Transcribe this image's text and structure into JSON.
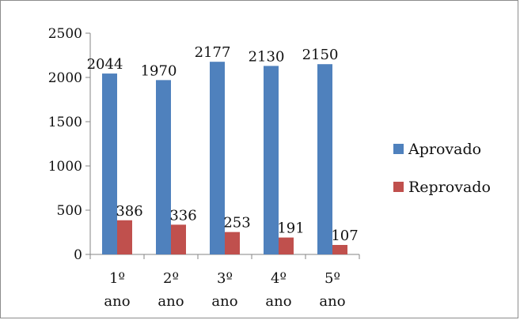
{
  "chart_data": {
    "type": "bar",
    "categories": [
      {
        "line1": "1º",
        "line2": "ano"
      },
      {
        "line1": "2º",
        "line2": "ano"
      },
      {
        "line1": "3º",
        "line2": "ano"
      },
      {
        "line1": "4º",
        "line2": "ano"
      },
      {
        "line1": "5º",
        "line2": "ano"
      }
    ],
    "series": [
      {
        "name": "Aprovado",
        "color": "#4F81BD",
        "values": [
          2044,
          1970,
          2177,
          2130,
          2150
        ]
      },
      {
        "name": "Reprovado",
        "color": "#C0504D",
        "values": [
          386,
          336,
          253,
          191,
          107
        ]
      }
    ],
    "ylim": [
      0,
      2500
    ],
    "yticks": [
      "0",
      "500",
      "1000",
      "1500",
      "2000",
      "2500"
    ],
    "grid": false,
    "legend": "right"
  }
}
